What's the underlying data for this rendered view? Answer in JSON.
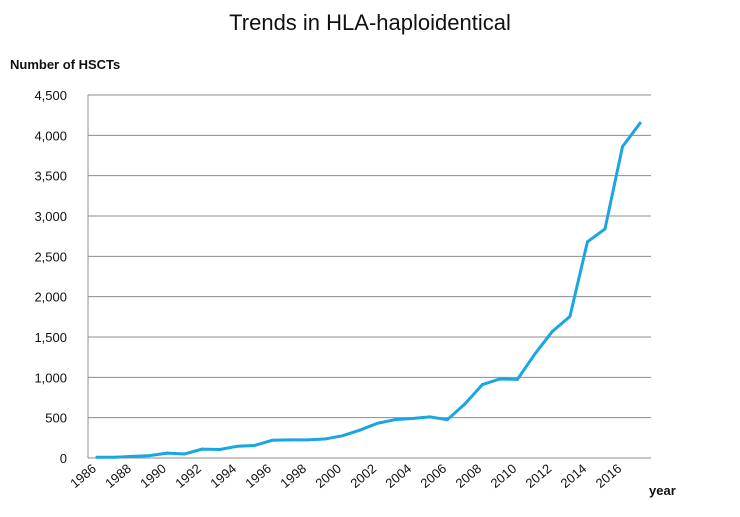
{
  "chart_data": {
    "type": "line",
    "title": "Trends in HLA-haploidentical",
    "ylabel": "Number of HSCTs",
    "xlabel": "year",
    "xlim": [
      1986,
      2017
    ],
    "ylim": [
      0,
      4500
    ],
    "grid": "horizontal",
    "line_color": "#1aa6e0",
    "y_ticks": [
      {
        "value": 0,
        "label": "0"
      },
      {
        "value": 500,
        "label": "500"
      },
      {
        "value": 1000,
        "label": "1,000"
      },
      {
        "value": 1500,
        "label": "1,500"
      },
      {
        "value": 2000,
        "label": "2,000"
      },
      {
        "value": 2500,
        "label": "2,500"
      },
      {
        "value": 3000,
        "label": "3,000"
      },
      {
        "value": 3500,
        "label": "3,500"
      },
      {
        "value": 4000,
        "label": "4,000"
      },
      {
        "value": 4500,
        "label": "4,500"
      }
    ],
    "x_ticks": [
      {
        "value": 1986,
        "label": "1986"
      },
      {
        "value": 1988,
        "label": "1988"
      },
      {
        "value": 1990,
        "label": "1990"
      },
      {
        "value": 1992,
        "label": "1992"
      },
      {
        "value": 1994,
        "label": "1994"
      },
      {
        "value": 1996,
        "label": "1996"
      },
      {
        "value": 1998,
        "label": "1998"
      },
      {
        "value": 2000,
        "label": "2000"
      },
      {
        "value": 2002,
        "label": "2002"
      },
      {
        "value": 2004,
        "label": "2004"
      },
      {
        "value": 2006,
        "label": "2006"
      },
      {
        "value": 2008,
        "label": "2008"
      },
      {
        "value": 2010,
        "label": "2010"
      },
      {
        "value": 2012,
        "label": "2012"
      },
      {
        "value": 2014,
        "label": "2014"
      },
      {
        "value": 2016,
        "label": "2016"
      }
    ],
    "series": [
      {
        "x": [
          1986,
          1987,
          1988,
          1989,
          1990,
          1991,
          1992,
          1993,
          1994,
          1995,
          1996,
          1997,
          1998,
          1999,
          2000,
          2001,
          2002,
          2003,
          2004,
          2005,
          2006,
          2007,
          2008,
          2009,
          2010,
          2011,
          2012,
          2013,
          2014,
          2015,
          2016,
          2017
        ],
        "values": [
          10,
          10,
          20,
          30,
          60,
          50,
          110,
          105,
          145,
          155,
          220,
          225,
          225,
          235,
          275,
          345,
          430,
          475,
          490,
          510,
          475,
          670,
          910,
          980,
          975,
          1290,
          1570,
          1755,
          2680,
          2840,
          3860,
          4150
        ]
      }
    ]
  }
}
